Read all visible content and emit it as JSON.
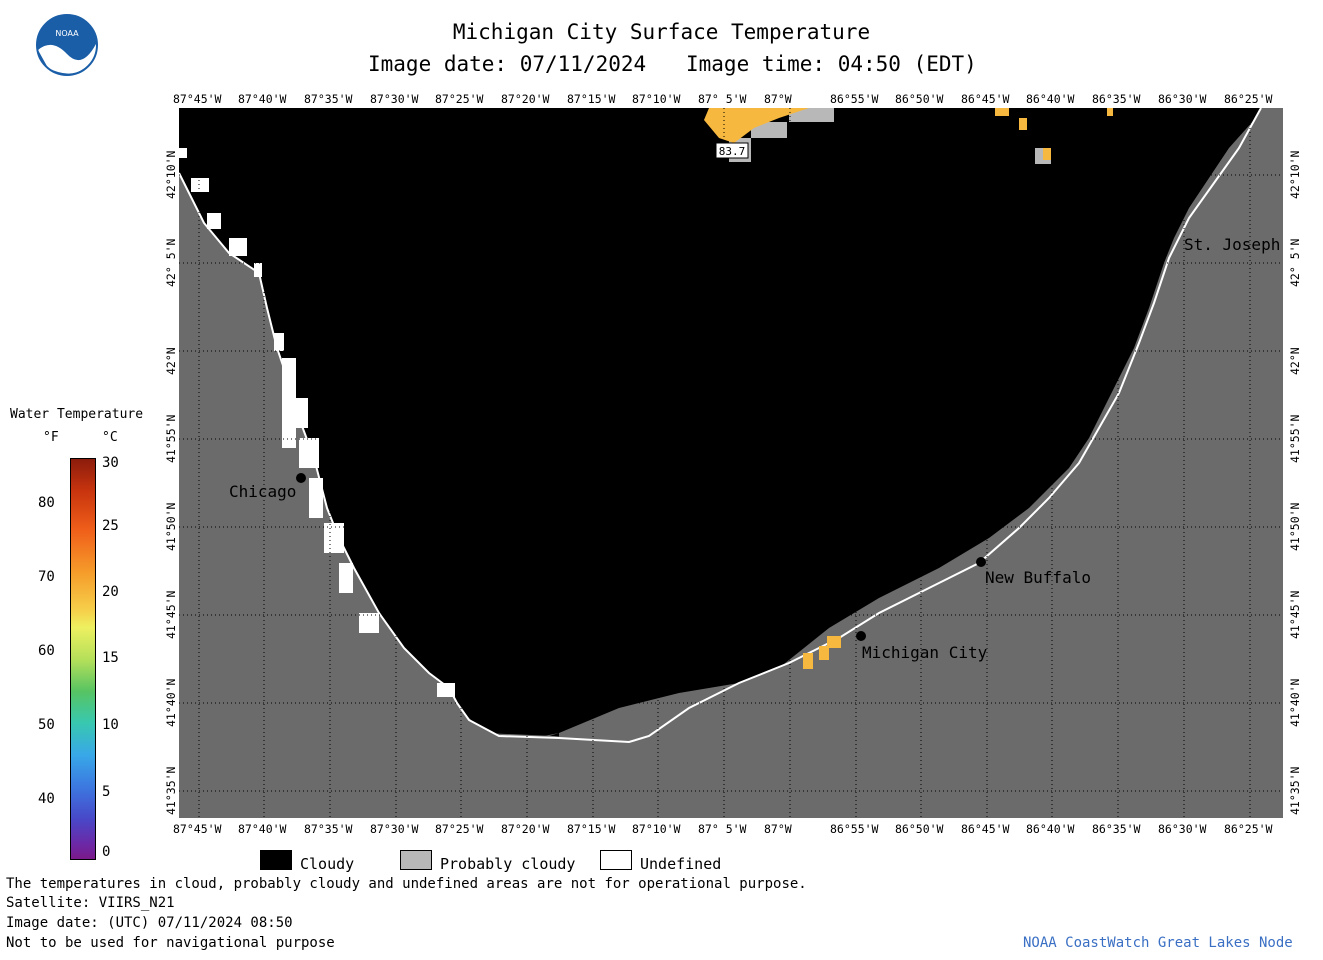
{
  "header": {
    "title": "Michigan City Surface Temperature",
    "image_date": "Image date: 07/11/2024",
    "image_time": "Image time: 04:50 (EDT)"
  },
  "logo": {
    "text": "NOAA"
  },
  "lon_ticks": [
    "87°45'W",
    "87°40'W",
    "87°35'W",
    "87°30'W",
    "87°25'W",
    "87°20'W",
    "87°15'W",
    "87°10'W",
    "87° 5'W",
    "87°W",
    "86°55'W",
    "86°50'W",
    "86°45'W",
    "86°40'W",
    "86°35'W",
    "86°30'W",
    "86°25'W"
  ],
  "lat_ticks": [
    "42°10'N",
    "42° 5'N",
    "42°N",
    "41°55'N",
    "41°50'N",
    "41°45'N",
    "41°40'N",
    "41°35'N"
  ],
  "places": {
    "chicago": "Chicago",
    "st_joseph": "St. Joseph",
    "new_buffalo": "New Buffalo",
    "michigan_city": "Michigan City"
  },
  "sample_value": "83.7",
  "scale": {
    "title": "Water Temperature",
    "unit_f": "°F",
    "unit_c": "°C",
    "f_ticks": [
      "80",
      "70",
      "60",
      "50",
      "40"
    ],
    "c_ticks": [
      "30",
      "25",
      "20",
      "15",
      "10",
      "5",
      "0"
    ]
  },
  "legend": {
    "cloudy": "Cloudy",
    "probably_cloudy": "Probably cloudy",
    "undefined": "Undefined"
  },
  "footer": {
    "disclaimer": "The temperatures in cloud, probably cloudy and undefined areas are not for operational purpose.",
    "satellite": "Satellite: VIIRS_N21",
    "utc_date": "Image date: (UTC) 07/11/2024  08:50",
    "nav_warning": "Not to be used for navigational purpose",
    "credit": "NOAA CoastWatch Great Lakes Node"
  },
  "colors": {
    "land": "#6b6b6b",
    "cloudy": "#000000",
    "probably_cloudy": "#b8b8b8",
    "undefined": "#ffffff",
    "warm_water": "#f7b840",
    "credit": "#3a6fc4"
  }
}
